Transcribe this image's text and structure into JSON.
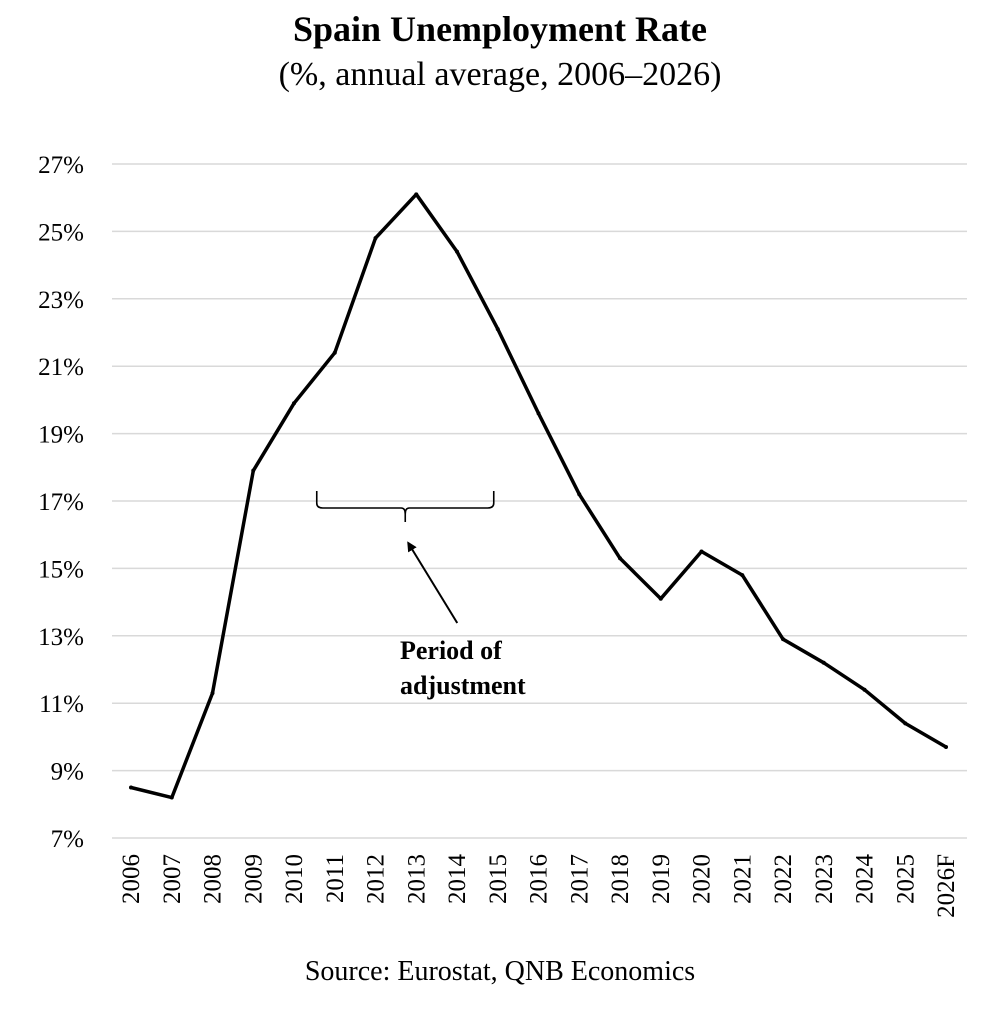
{
  "chart_data": {
    "type": "line",
    "title": "Spain Unemployment Rate",
    "subtitle": "(%, annual average, 2006–2026)",
    "xlabel": "",
    "ylabel": "",
    "categories": [
      "2006",
      "2007",
      "2008",
      "2009",
      "2010",
      "2011",
      "2012",
      "2013",
      "2014",
      "2015",
      "2016",
      "2017",
      "2018",
      "2019",
      "2020",
      "2021",
      "2022",
      "2023",
      "2024",
      "2025",
      "2026F"
    ],
    "series": [
      {
        "values": [
          8.5,
          8.2,
          11.3,
          17.9,
          19.9,
          21.4,
          24.8,
          26.1,
          24.4,
          22.1,
          19.6,
          17.2,
          15.3,
          14.1,
          15.5,
          14.8,
          12.9,
          12.2,
          11.4,
          10.4,
          9.7
        ]
      }
    ],
    "ylim": [
      7,
      27
    ],
    "yticks": [
      "27%",
      "25%",
      "23%",
      "21%",
      "19%",
      "17%",
      "15%",
      "13%",
      "11%",
      "9%",
      "7%"
    ],
    "grid": true,
    "legend": "none",
    "annotation": {
      "text_line1": "Period of",
      "text_line2": "adjustment",
      "span": [
        "2011",
        "2015"
      ],
      "bracket_level": 17
    },
    "line_color": "#000000",
    "grid_color": "#d9d9d9"
  },
  "source": "Source: Eurostat, QNB Economics"
}
